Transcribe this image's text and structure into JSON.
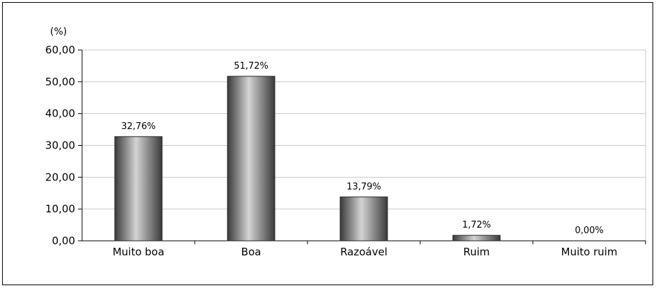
{
  "chart_data": {
    "type": "bar",
    "unit_label": "(%)",
    "categories": [
      "Muito boa",
      "Boa",
      "Razoável",
      "Ruim",
      "Muito ruim"
    ],
    "values": [
      32.76,
      51.72,
      13.79,
      1.72,
      0.0
    ],
    "data_labels": [
      "32,76%",
      "51,72%",
      "13,79%",
      "1,72%",
      "0,00%"
    ],
    "ylim": [
      0,
      60
    ],
    "y_ticks": [
      0,
      10,
      20,
      30,
      40,
      50,
      60
    ],
    "y_tick_labels": [
      "0,00",
      "10,00",
      "20,00",
      "30,00",
      "40,00",
      "50,00",
      "60,00"
    ],
    "grid": true,
    "bar_color": "#9a9a9a",
    "grid_color": "#c8c8c8"
  }
}
